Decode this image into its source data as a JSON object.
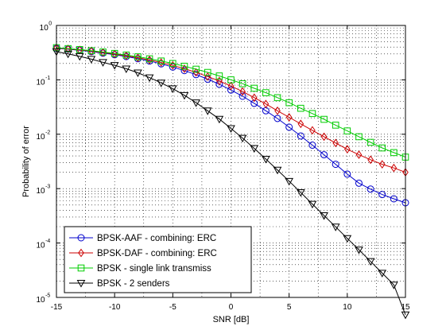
{
  "chart_data": {
    "type": "line",
    "title": "",
    "xlabel": "SNR [dB]",
    "ylabel": "Probability of error",
    "xlim": [
      -15,
      15
    ],
    "ylim": [
      1e-05,
      1
    ],
    "y_scale": "log",
    "grid": true,
    "legend_position": "bottom-left",
    "x_ticks": [
      -15,
      -10,
      -5,
      0,
      5,
      10,
      15
    ],
    "y_ticks": [
      {
        "base": "10",
        "exp": "-5",
        "value": 1e-05
      },
      {
        "base": "10",
        "exp": "-4",
        "value": 0.0001
      },
      {
        "base": "10",
        "exp": "-3",
        "value": 0.001
      },
      {
        "base": "10",
        "exp": "-2",
        "value": 0.01
      },
      {
        "base": "10",
        "exp": "-1",
        "value": 0.1
      },
      {
        "base": "10",
        "exp": "0",
        "value": 1
      }
    ],
    "x": [
      -15,
      -14,
      -13,
      -12,
      -11,
      -10,
      -9,
      -8,
      -7,
      -6,
      -5,
      -4,
      -3,
      -2,
      -1,
      0,
      1,
      2,
      3,
      4,
      5,
      6,
      7,
      8,
      9,
      10,
      11,
      12,
      13,
      14,
      15
    ],
    "series": [
      {
        "name": "BPSK-AAF - combining: ERC",
        "color": "#0000cc",
        "marker": "circle",
        "values": [
          0.38,
          0.365,
          0.35,
          0.33,
          0.31,
          0.29,
          0.268,
          0.245,
          0.222,
          0.197,
          0.172,
          0.148,
          0.125,
          0.103,
          0.083,
          0.065,
          0.05,
          0.037,
          0.027,
          0.0195,
          0.0135,
          0.0093,
          0.0063,
          0.0042,
          0.0028,
          0.00185,
          0.00126,
          0.00098,
          0.00078,
          0.00065,
          0.00055
        ]
      },
      {
        "name": "BPSK-DAF - combining: ERC",
        "color": "#cc0000",
        "marker": "diamond",
        "values": [
          0.385,
          0.37,
          0.355,
          0.337,
          0.318,
          0.298,
          0.277,
          0.255,
          0.232,
          0.208,
          0.184,
          0.16,
          0.137,
          0.115,
          0.095,
          0.077,
          0.061,
          0.047,
          0.036,
          0.027,
          0.0205,
          0.0155,
          0.0118,
          0.009,
          0.0069,
          0.0053,
          0.0042,
          0.0034,
          0.0028,
          0.0024,
          0.002
        ]
      },
      {
        "name": "BPSK - single link transmiss",
        "color": "#00cc00",
        "marker": "square",
        "values": [
          0.39,
          0.375,
          0.36,
          0.343,
          0.325,
          0.306,
          0.286,
          0.265,
          0.244,
          0.222,
          0.2,
          0.178,
          0.157,
          0.137,
          0.118,
          0.1,
          0.085,
          0.07,
          0.058,
          0.047,
          0.038,
          0.03,
          0.024,
          0.0188,
          0.0147,
          0.0115,
          0.009,
          0.0071,
          0.0056,
          0.0046,
          0.0038
        ]
      },
      {
        "name": "BPSK - 2 senders",
        "color": "#000000",
        "marker": "triangle-down",
        "values": [
          0.33,
          0.3,
          0.27,
          0.24,
          0.21,
          0.185,
          0.16,
          0.135,
          0.11,
          0.088,
          0.069,
          0.052,
          0.038,
          0.027,
          0.019,
          0.0128,
          0.0085,
          0.0055,
          0.0035,
          0.0022,
          0.00137,
          0.00085,
          0.00052,
          0.00032,
          0.000198,
          0.000122,
          7.5e-05,
          4.6e-05,
          2.8e-05,
          1.7e-05,
          4.8e-06
        ]
      }
    ]
  }
}
